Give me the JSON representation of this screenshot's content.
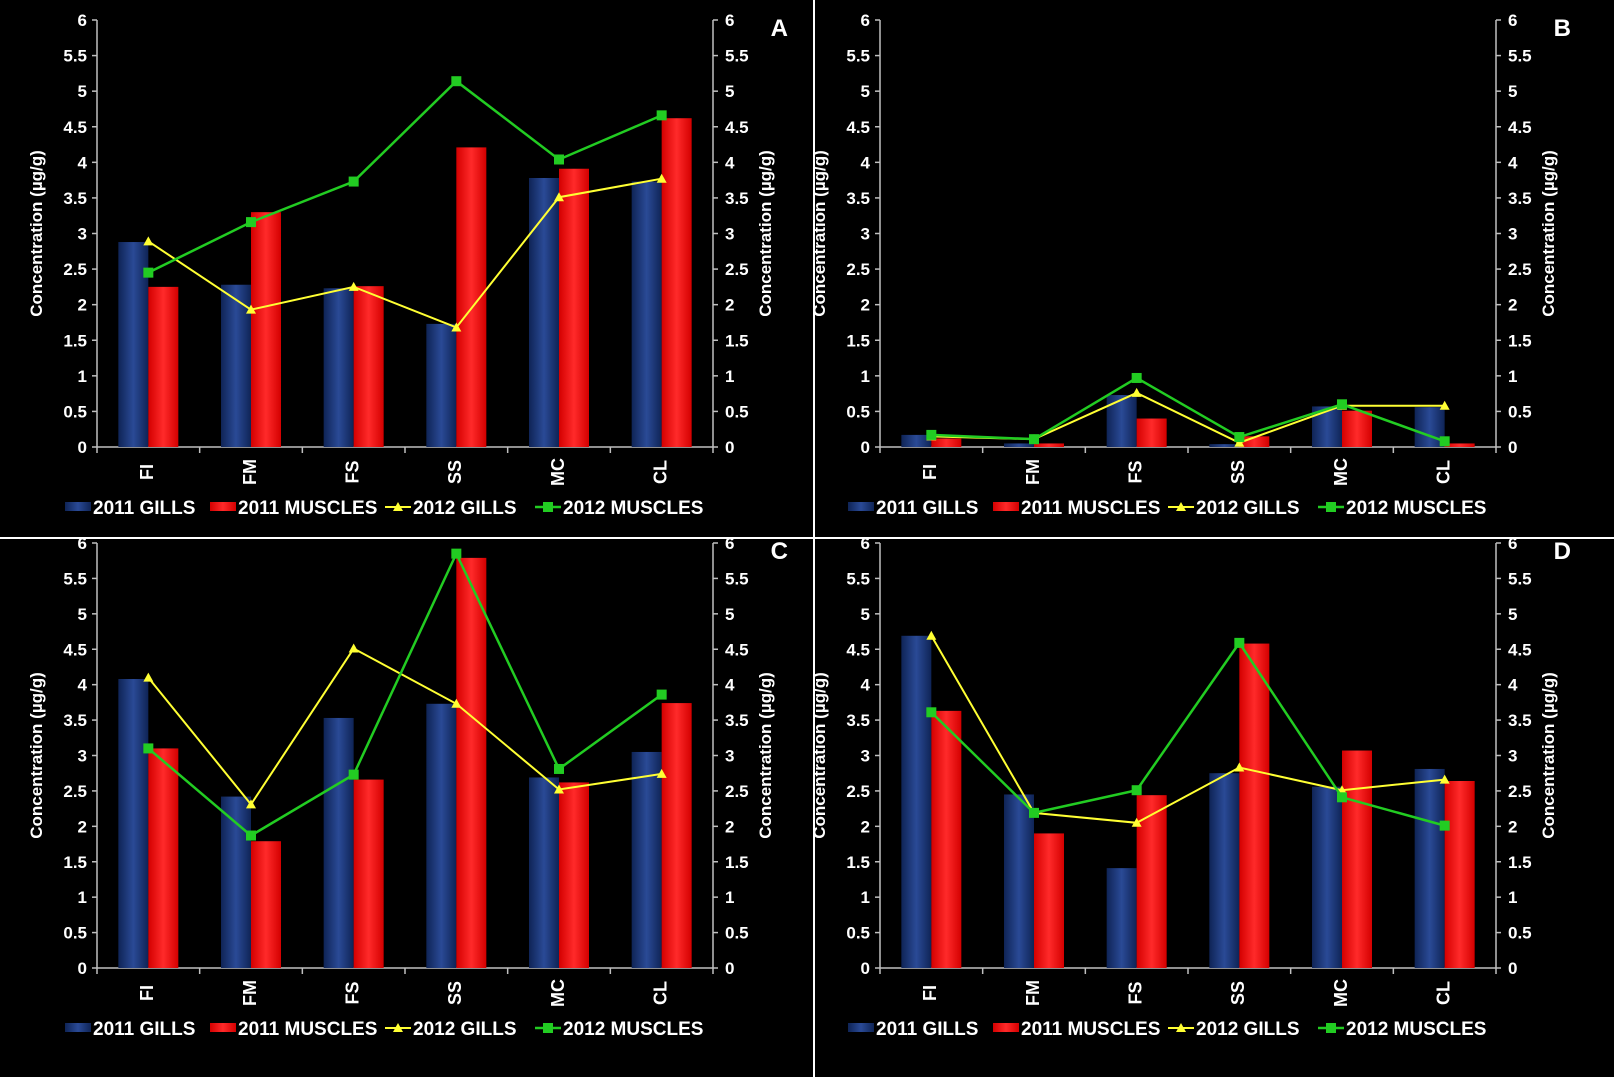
{
  "chart_data": [
    {
      "type": "bar",
      "panel_label": "A",
      "ylabel": "Concentration (µg/g)",
      "y2label": "Concentration (µg/g)",
      "ylim": [
        0,
        6
      ],
      "y2lim": [
        0,
        6
      ],
      "yticks": [
        "0",
        "0.5",
        "1",
        "1.5",
        "2",
        "2.5",
        "3",
        "3.5",
        "4",
        "4.5",
        "5",
        "5.5",
        "6"
      ],
      "categories": [
        "FI",
        "FM",
        "FS",
        "SS",
        "MC",
        "CL"
      ],
      "series": [
        {
          "name": "2011 GILLS",
          "kind": "bar",
          "values": [
            2.88,
            2.28,
            2.23,
            1.73,
            3.78,
            3.73
          ]
        },
        {
          "name": "2011 MUSCLES",
          "kind": "bar",
          "values": [
            2.25,
            3.3,
            2.26,
            4.21,
            3.91,
            4.62
          ]
        },
        {
          "name": "2012 GILLS",
          "kind": "line",
          "values": [
            2.89,
            1.93,
            2.25,
            1.68,
            3.51,
            3.77
          ]
        },
        {
          "name": "2012 MUSCLES",
          "kind": "line",
          "values": [
            2.45,
            3.16,
            3.73,
            5.14,
            4.04,
            4.66
          ]
        }
      ],
      "grid": false,
      "legend_position": "bottom"
    },
    {
      "type": "bar",
      "panel_label": "B",
      "ylabel": "Concentration (µg/g)",
      "y2label": "Concentration (µg/g)",
      "ylim": [
        0,
        6
      ],
      "y2lim": [
        0,
        6
      ],
      "yticks": [
        "0",
        "0.5",
        "1",
        "1.5",
        "2",
        "2.5",
        "3",
        "3.5",
        "4",
        "4.5",
        "5",
        "5.5",
        "6"
      ],
      "categories": [
        "FI",
        "FM",
        "FS",
        "SS",
        "MC",
        "CL"
      ],
      "series": [
        {
          "name": "2011 GILLS",
          "kind": "bar",
          "values": [
            0.17,
            0.05,
            0.73,
            0.04,
            0.57,
            0.56
          ]
        },
        {
          "name": "2011 MUSCLES",
          "kind": "bar",
          "values": [
            0.12,
            0.05,
            0.4,
            0.15,
            0.51,
            0.05
          ]
        },
        {
          "name": "2012 GILLS",
          "kind": "line",
          "values": [
            0.15,
            0.11,
            0.76,
            0.06,
            0.58,
            0.58
          ]
        },
        {
          "name": "2012 MUSCLES",
          "kind": "line",
          "values": [
            0.17,
            0.11,
            0.97,
            0.14,
            0.6,
            0.08
          ]
        }
      ],
      "grid": false,
      "legend_position": "bottom"
    },
    {
      "type": "bar",
      "panel_label": "C",
      "ylabel": "Concentration (µg/g)",
      "y2label": "Concentration (µg/g)",
      "ylim": [
        0,
        6
      ],
      "y2lim": [
        0,
        6
      ],
      "yticks": [
        "0",
        "0.5",
        "1",
        "1.5",
        "2",
        "2.5",
        "3",
        "3.5",
        "4",
        "4.5",
        "5",
        "5.5",
        "6"
      ],
      "categories": [
        "FI",
        "FM",
        "FS",
        "SS",
        "MC",
        "CL"
      ],
      "series": [
        {
          "name": "2011 GILLS",
          "kind": "bar",
          "values": [
            4.08,
            2.42,
            3.53,
            3.73,
            2.69,
            3.05
          ]
        },
        {
          "name": "2011 MUSCLES",
          "kind": "bar",
          "values": [
            3.1,
            1.79,
            2.66,
            5.79,
            2.62,
            3.74
          ]
        },
        {
          "name": "2012 GILLS",
          "kind": "line",
          "values": [
            4.1,
            2.31,
            4.51,
            3.73,
            2.52,
            2.74
          ]
        },
        {
          "name": "2012 MUSCLES",
          "kind": "line",
          "values": [
            3.1,
            1.87,
            2.73,
            5.85,
            2.81,
            3.86
          ]
        }
      ],
      "grid": false,
      "legend_position": "bottom"
    },
    {
      "type": "bar",
      "panel_label": "D",
      "ylabel": "Concentration (µg/g)",
      "y2label": "Concentration (µg/g)",
      "ylim": [
        0,
        6
      ],
      "y2lim": [
        0,
        6
      ],
      "yticks": [
        "0",
        "0.5",
        "1",
        "1.5",
        "2",
        "2.5",
        "3",
        "3.5",
        "4",
        "4.5",
        "5",
        "5.5",
        "6"
      ],
      "categories": [
        "FI",
        "FM",
        "FS",
        "SS",
        "MC",
        "CL"
      ],
      "series": [
        {
          "name": "2011 GILLS",
          "kind": "bar",
          "values": [
            4.69,
            2.45,
            1.41,
            2.75,
            2.56,
            2.81
          ]
        },
        {
          "name": "2011 MUSCLES",
          "kind": "bar",
          "values": [
            3.63,
            1.9,
            2.44,
            4.58,
            3.07,
            2.64
          ]
        },
        {
          "name": "2012 GILLS",
          "kind": "line",
          "values": [
            4.69,
            2.19,
            2.05,
            2.83,
            2.51,
            2.66
          ]
        },
        {
          "name": "2012 MUSCLES",
          "kind": "line",
          "values": [
            3.61,
            2.19,
            2.51,
            4.59,
            2.41,
            2.01
          ]
        }
      ],
      "grid": false,
      "legend_position": "bottom"
    }
  ],
  "colors": {
    "background": "#000000",
    "gills_2011_bar": "#1f3a7a",
    "muscles_2011_bar": "#ff0000",
    "gills_2012_line": "#ffff33",
    "muscles_2012_line": "#22cc22",
    "axis_and_text": "#ffffff"
  },
  "markers": {
    "gills_2012": "triangle",
    "muscles_2012": "square"
  }
}
